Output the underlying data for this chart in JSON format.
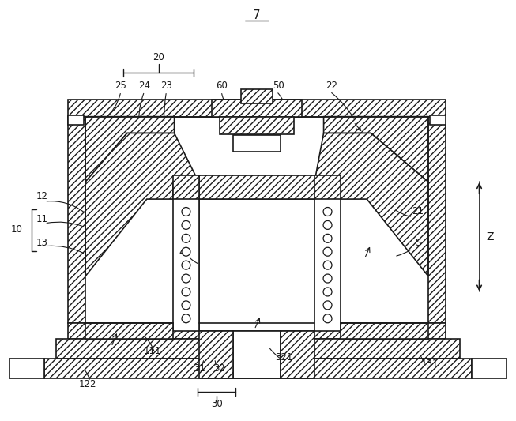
{
  "bg_color": "#ffffff",
  "line_color": "#1a1a1a",
  "figsize": [
    6.53,
    5.33
  ],
  "dpi": 100
}
